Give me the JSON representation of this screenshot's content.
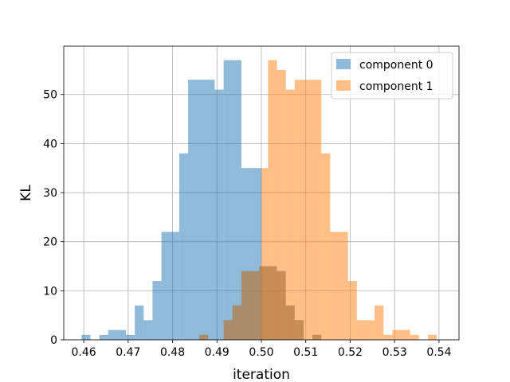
{
  "chart_data": {
    "type": "bar",
    "xlabel": "iteration",
    "ylabel": "KL",
    "xlim": [
      0.4555,
      0.5445
    ],
    "ylim": [
      0,
      59.85
    ],
    "xticks": [
      0.46,
      0.47,
      0.48,
      0.49,
      0.5,
      0.51,
      0.52,
      0.53,
      0.54
    ],
    "xtick_labels": [
      "0.46",
      "0.47",
      "0.48",
      "0.49",
      "0.50",
      "0.51",
      "0.52",
      "0.53",
      "0.54"
    ],
    "yticks": [
      0,
      10,
      20,
      30,
      40,
      50
    ],
    "ytick_labels": [
      "0",
      "10",
      "20",
      "30",
      "40",
      "50"
    ],
    "grid": true,
    "legend_position": "top-right",
    "series": [
      {
        "name": "component 0",
        "color": "#1f77b4",
        "alpha": 0.5,
        "bins": [
          [
            0.4595,
            0.4615,
            1
          ],
          [
            0.4615,
            0.4635,
            0
          ],
          [
            0.4635,
            0.4655,
            1
          ],
          [
            0.4655,
            0.4695,
            2
          ],
          [
            0.4695,
            0.4715,
            1
          ],
          [
            0.4715,
            0.4735,
            7
          ],
          [
            0.4735,
            0.4755,
            4
          ],
          [
            0.4755,
            0.4775,
            12
          ],
          [
            0.4775,
            0.4815,
            22
          ],
          [
            0.4815,
            0.4835,
            38
          ],
          [
            0.4835,
            0.4895,
            53
          ],
          [
            0.4895,
            0.4915,
            51
          ],
          [
            0.4915,
            0.4955,
            57
          ],
          [
            0.4955,
            0.4975,
            35
          ],
          [
            0.4975,
            0.5,
            35
          ]
        ]
      },
      {
        "name": "component 1",
        "color": "#ff7f0e",
        "alpha": 0.5,
        "bins": [
          [
            0.5,
            0.5015,
            35
          ],
          [
            0.5015,
            0.5035,
            57
          ],
          [
            0.5035,
            0.5055,
            55
          ],
          [
            0.5055,
            0.5075,
            51
          ],
          [
            0.5075,
            0.5135,
            53
          ],
          [
            0.5135,
            0.5155,
            38
          ],
          [
            0.5155,
            0.5195,
            22
          ],
          [
            0.5195,
            0.5215,
            12
          ],
          [
            0.5215,
            0.5235,
            4
          ],
          [
            0.5235,
            0.5255,
            4
          ],
          [
            0.5255,
            0.5275,
            7
          ],
          [
            0.5275,
            0.5295,
            1
          ],
          [
            0.5295,
            0.5335,
            2
          ],
          [
            0.5335,
            0.5355,
            1
          ],
          [
            0.5355,
            0.5375,
            0
          ],
          [
            0.5375,
            0.5395,
            1
          ]
        ]
      },
      {
        "name": "component 0",
        "color": "#1f77b4",
        "alpha": 0.5,
        "legend": false,
        "bins": [
          [
            0.486,
            0.488,
            1
          ],
          [
            0.4915,
            0.4935,
            4
          ],
          [
            0.4935,
            0.4955,
            7
          ],
          [
            0.4955,
            0.4975,
            14
          ],
          [
            0.4975,
            0.4995,
            14
          ],
          [
            0.4995,
            0.5015,
            15
          ],
          [
            0.5015,
            0.5035,
            15
          ],
          [
            0.5035,
            0.5055,
            14
          ],
          [
            0.5055,
            0.5075,
            7
          ],
          [
            0.5075,
            0.5095,
            4
          ],
          [
            0.5115,
            0.5135,
            1
          ]
        ]
      },
      {
        "name": "component 1",
        "color": "#ff7f0e",
        "alpha": 0.5,
        "legend": false,
        "bins": [
          [
            0.486,
            0.488,
            1
          ],
          [
            0.4915,
            0.4935,
            4
          ],
          [
            0.4935,
            0.4955,
            7
          ],
          [
            0.4955,
            0.4975,
            14
          ],
          [
            0.4975,
            0.4995,
            14
          ],
          [
            0.4995,
            0.5015,
            15
          ],
          [
            0.5015,
            0.5035,
            15
          ],
          [
            0.5035,
            0.5055,
            14
          ],
          [
            0.5055,
            0.5075,
            7
          ],
          [
            0.5075,
            0.5095,
            4
          ],
          [
            0.5115,
            0.5135,
            1
          ]
        ]
      }
    ],
    "legend": [
      "component 0",
      "component 1"
    ]
  }
}
